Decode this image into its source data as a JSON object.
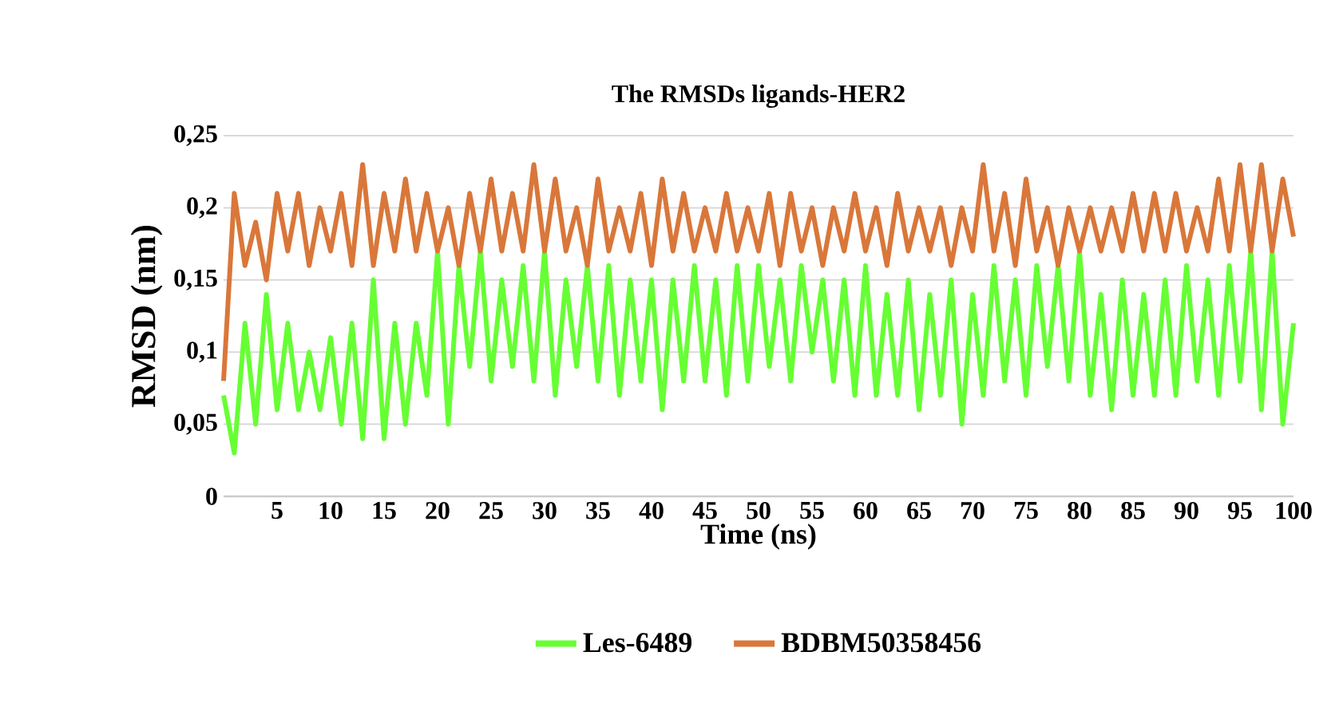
{
  "chart_data": {
    "type": "line",
    "title": "The RMSDs ligands-HER2",
    "xlabel": "Time (ns)",
    "ylabel": "RMSD (nm)",
    "x": [
      0,
      1,
      2,
      3,
      4,
      5,
      6,
      7,
      8,
      9,
      10,
      11,
      12,
      13,
      14,
      15,
      16,
      17,
      18,
      19,
      20,
      21,
      22,
      23,
      24,
      25,
      26,
      27,
      28,
      29,
      30,
      31,
      32,
      33,
      34,
      35,
      36,
      37,
      38,
      39,
      40,
      41,
      42,
      43,
      44,
      45,
      46,
      47,
      48,
      49,
      50,
      51,
      52,
      53,
      54,
      55,
      56,
      57,
      58,
      59,
      60,
      61,
      62,
      63,
      64,
      65,
      66,
      67,
      68,
      69,
      70,
      71,
      72,
      73,
      74,
      75,
      76,
      77,
      78,
      79,
      80,
      81,
      82,
      83,
      84,
      85,
      86,
      87,
      88,
      89,
      90,
      91,
      92,
      93,
      94,
      95,
      96,
      97,
      98,
      99,
      100
    ],
    "series": [
      {
        "name": "Les-6489",
        "color": "#66ff33",
        "values": [
          0.07,
          0.03,
          0.12,
          0.05,
          0.14,
          0.06,
          0.12,
          0.06,
          0.1,
          0.06,
          0.11,
          0.05,
          0.12,
          0.04,
          0.15,
          0.04,
          0.12,
          0.05,
          0.12,
          0.07,
          0.17,
          0.05,
          0.16,
          0.09,
          0.17,
          0.08,
          0.15,
          0.09,
          0.16,
          0.08,
          0.17,
          0.07,
          0.15,
          0.09,
          0.16,
          0.08,
          0.16,
          0.07,
          0.15,
          0.08,
          0.15,
          0.06,
          0.15,
          0.08,
          0.16,
          0.08,
          0.15,
          0.07,
          0.16,
          0.08,
          0.16,
          0.09,
          0.15,
          0.08,
          0.16,
          0.1,
          0.15,
          0.08,
          0.15,
          0.07,
          0.16,
          0.07,
          0.14,
          0.07,
          0.15,
          0.06,
          0.14,
          0.07,
          0.15,
          0.05,
          0.14,
          0.07,
          0.16,
          0.08,
          0.15,
          0.07,
          0.16,
          0.09,
          0.16,
          0.08,
          0.17,
          0.07,
          0.14,
          0.06,
          0.15,
          0.07,
          0.14,
          0.07,
          0.15,
          0.07,
          0.16,
          0.08,
          0.15,
          0.07,
          0.16,
          0.08,
          0.17,
          0.06,
          0.17,
          0.05,
          0.12
        ]
      },
      {
        "name": "BDBM50358456",
        "color": "#d9773a",
        "values": [
          0.08,
          0.21,
          0.16,
          0.19,
          0.15,
          0.21,
          0.17,
          0.21,
          0.16,
          0.2,
          0.17,
          0.21,
          0.16,
          0.23,
          0.16,
          0.21,
          0.17,
          0.22,
          0.17,
          0.21,
          0.17,
          0.2,
          0.16,
          0.21,
          0.17,
          0.22,
          0.17,
          0.21,
          0.17,
          0.23,
          0.17,
          0.22,
          0.17,
          0.2,
          0.16,
          0.22,
          0.17,
          0.2,
          0.17,
          0.21,
          0.16,
          0.22,
          0.17,
          0.21,
          0.17,
          0.2,
          0.17,
          0.21,
          0.17,
          0.2,
          0.17,
          0.21,
          0.16,
          0.21,
          0.17,
          0.2,
          0.16,
          0.2,
          0.17,
          0.21,
          0.17,
          0.2,
          0.16,
          0.21,
          0.17,
          0.2,
          0.17,
          0.2,
          0.16,
          0.2,
          0.17,
          0.23,
          0.17,
          0.21,
          0.16,
          0.22,
          0.17,
          0.2,
          0.16,
          0.2,
          0.17,
          0.2,
          0.17,
          0.2,
          0.17,
          0.21,
          0.17,
          0.21,
          0.17,
          0.21,
          0.17,
          0.2,
          0.17,
          0.22,
          0.17,
          0.23,
          0.17,
          0.23,
          0.17,
          0.22,
          0.18
        ]
      }
    ],
    "xlim": [
      0,
      100
    ],
    "xticks": [
      5,
      10,
      15,
      20,
      25,
      30,
      35,
      40,
      45,
      50,
      55,
      60,
      65,
      70,
      75,
      80,
      85,
      90,
      95,
      100
    ],
    "ylim": [
      0,
      0.25
    ],
    "yticks": [
      {
        "value": 0,
        "label": "0"
      },
      {
        "value": 0.05,
        "label": "0,05"
      },
      {
        "value": 0.1,
        "label": "0,1"
      },
      {
        "value": 0.15,
        "label": "0,15"
      },
      {
        "value": 0.2,
        "label": "0,2"
      },
      {
        "value": 0.25,
        "label": "0,25"
      }
    ],
    "grid": "y",
    "legend": "bottom",
    "marker": "none",
    "line_style": "solid"
  }
}
